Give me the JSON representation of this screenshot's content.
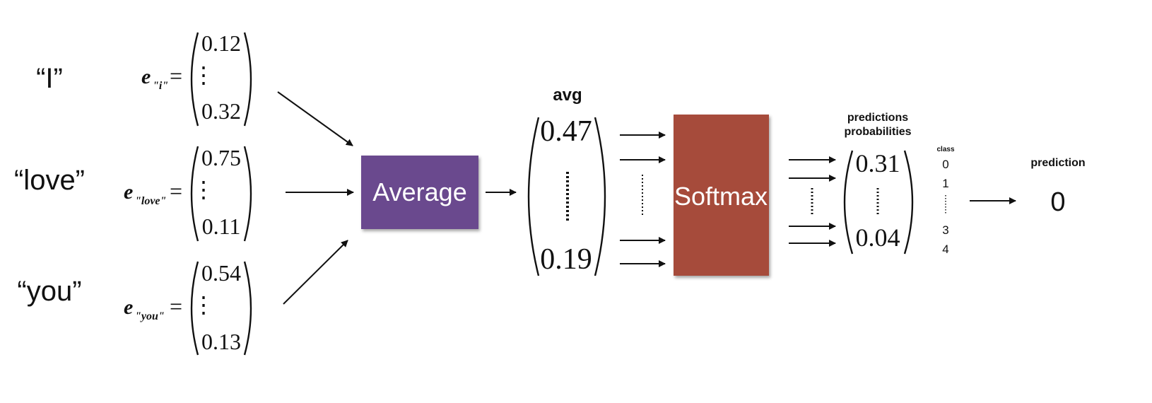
{
  "words": [
    "“I”",
    "“love”",
    "“you”"
  ],
  "embeddings": [
    {
      "label": "e",
      "subscript": "\"i\"",
      "equals": "=",
      "top": "0.12",
      "vdots": "⋮",
      "bottom": "0.32"
    },
    {
      "label": "e",
      "subscript": "\"love\"",
      "equals": "=",
      "top": "0.75",
      "vdots": "⋮",
      "bottom": "0.11"
    },
    {
      "label": "e",
      "subscript": "\"you\"",
      "equals": "=",
      "top": "0.54",
      "vdots": "⋮",
      "bottom": "0.13"
    }
  ],
  "average_box": {
    "label": "Average",
    "color": "#6a4a8e"
  },
  "avg": {
    "title": "avg",
    "top": "0.47",
    "bottom": "0.19"
  },
  "softmax_box": {
    "label": "Softmax",
    "color": "#a64b3b"
  },
  "probabilities": {
    "title_line1": "predictions",
    "title_line2": "probabilities",
    "top": "0.31",
    "bottom": "0.04"
  },
  "classes": {
    "title": "class",
    "items": [
      "0",
      "1",
      "3",
      "4"
    ]
  },
  "prediction": {
    "title": "prediction",
    "value": "0"
  }
}
